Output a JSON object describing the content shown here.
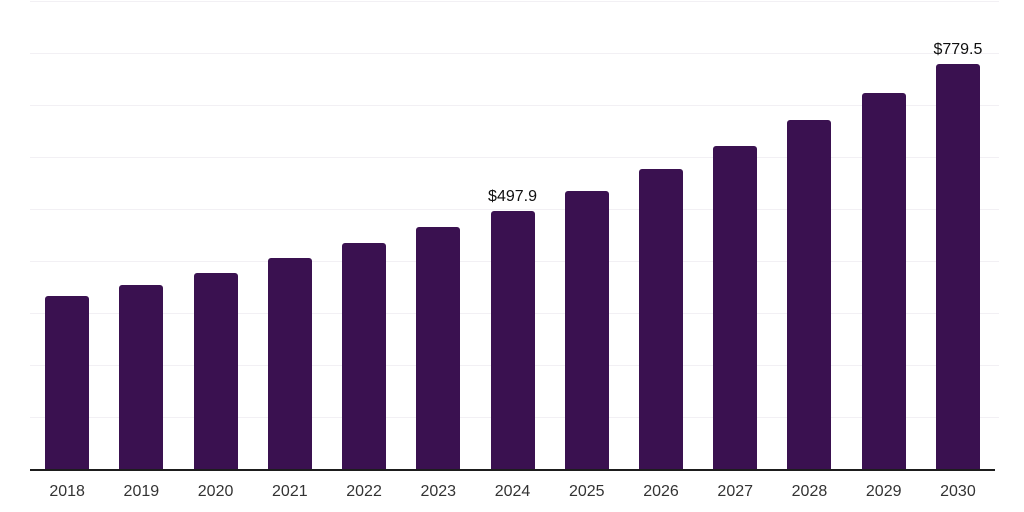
{
  "chart_data": {
    "type": "bar",
    "title": "",
    "xlabel": "",
    "ylabel": "",
    "categories": [
      "2018",
      "2019",
      "2020",
      "2021",
      "2022",
      "2023",
      "2024",
      "2025",
      "2026",
      "2027",
      "2028",
      "2029",
      "2030"
    ],
    "values": [
      333.9,
      354.8,
      378.0,
      406.2,
      435.3,
      466.5,
      497.9,
      536.4,
      577.5,
      621.5,
      671.0,
      723.5,
      779.5
    ],
    "data_labels": [
      {
        "category": "2024",
        "text": "$497.9"
      },
      {
        "category": "2030",
        "text": "$779.5"
      }
    ],
    "ylim": [
      0,
      900
    ],
    "grid_step": 100,
    "grid": "horizontal",
    "y_tick_labels_visible": false,
    "legend_position": "none",
    "colors": {
      "bar": "#3a1150",
      "gridline": "#f2f0f4",
      "axis_line": "#1d1d1d",
      "tick_label": "#333333",
      "data_label": "#0f0f0f",
      "background": "#ffffff"
    }
  }
}
